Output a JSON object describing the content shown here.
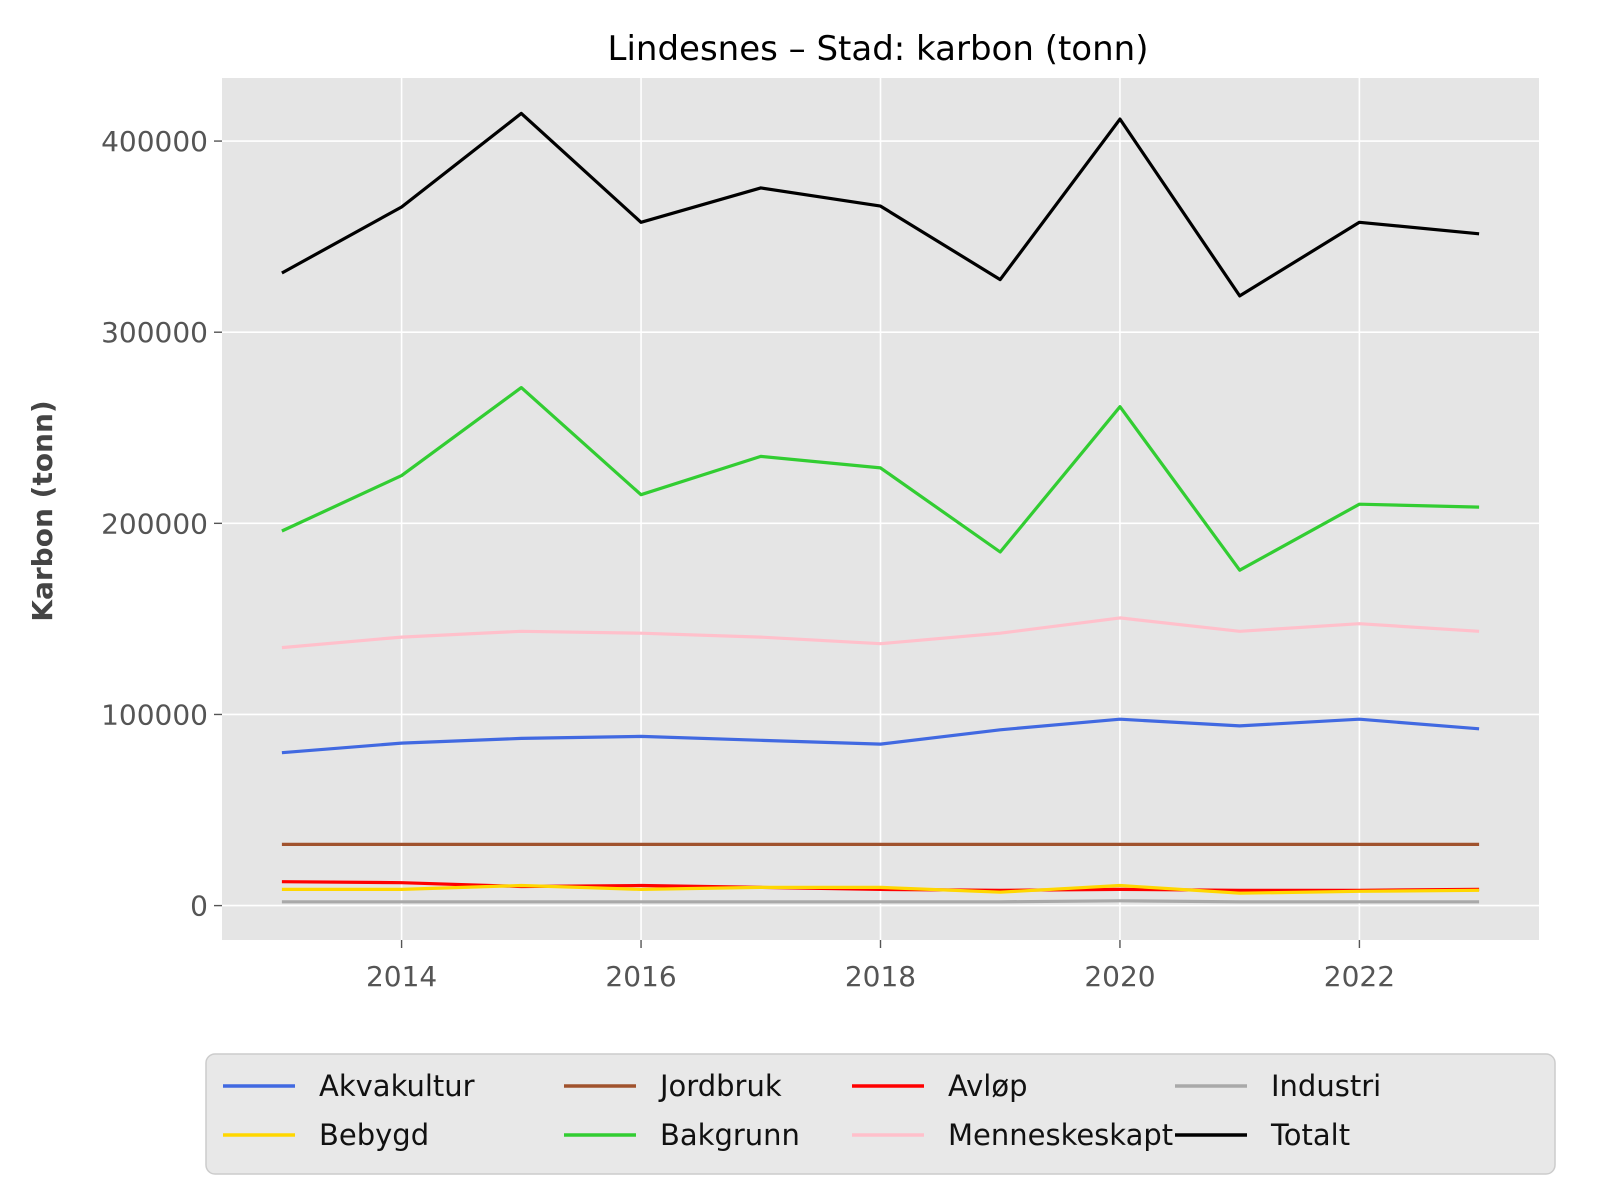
{
  "chart_data": {
    "type": "line",
    "title": "Lindesnes – Stad: karbon (tonn)",
    "xlabel": "",
    "ylabel": "Karbon (tonn)",
    "x": [
      2013,
      2014,
      2015,
      2016,
      2017,
      2018,
      2019,
      2020,
      2021,
      2022,
      2023
    ],
    "xlim": [
      2012.5,
      2023.5
    ],
    "ylim": [
      -18000,
      433000
    ],
    "xticks": [
      2014,
      2016,
      2018,
      2020,
      2022
    ],
    "yticks": [
      0,
      100000,
      200000,
      300000,
      400000
    ],
    "xtick_labels": [
      "2014",
      "2016",
      "2018",
      "2020",
      "2022"
    ],
    "ytick_labels": [
      "0",
      "100000",
      "200000",
      "300000",
      "400000"
    ],
    "grid": true,
    "legend_position": "bottom-outside",
    "series": [
      {
        "name": "Akvakultur",
        "color": "#4169E1",
        "values": [
          80000,
          85000,
          87500,
          88500,
          86500,
          84500,
          92000,
          97500,
          94000,
          97500,
          92500
        ]
      },
      {
        "name": "Jordbruk",
        "color": "#A0522D",
        "values": [
          32000,
          32000,
          32000,
          32000,
          32000,
          32000,
          32000,
          32000,
          32000,
          32000,
          32000
        ]
      },
      {
        "name": "Avløp",
        "color": "#FF0000",
        "values": [
          12500,
          12000,
          10000,
          10500,
          9500,
          8500,
          8000,
          8500,
          8000,
          8000,
          8500
        ]
      },
      {
        "name": "Industri",
        "color": "#A9A9A9",
        "values": [
          2000,
          2000,
          2000,
          2000,
          2000,
          2000,
          2000,
          2500,
          2000,
          2000,
          2000
        ]
      },
      {
        "name": "Bebygd",
        "color": "#FFD700",
        "values": [
          8500,
          8500,
          10500,
          8500,
          9500,
          9500,
          7000,
          10500,
          6500,
          7500,
          8000
        ]
      },
      {
        "name": "Bakgrunn",
        "color": "#32CD32",
        "values": [
          196000,
          225000,
          271000,
          215000,
          235000,
          229000,
          185000,
          261000,
          175500,
          210000,
          208500
        ]
      },
      {
        "name": "Menneskeskapt",
        "color": "#FFC0CB",
        "values": [
          135000,
          140500,
          143500,
          142500,
          140500,
          137000,
          142500,
          150500,
          143500,
          147500,
          143500
        ]
      },
      {
        "name": "Totalt",
        "color": "#000000",
        "values": [
          331000,
          365500,
          414500,
          357500,
          375500,
          366000,
          327500,
          411500,
          319000,
          357500,
          351500
        ]
      }
    ]
  }
}
